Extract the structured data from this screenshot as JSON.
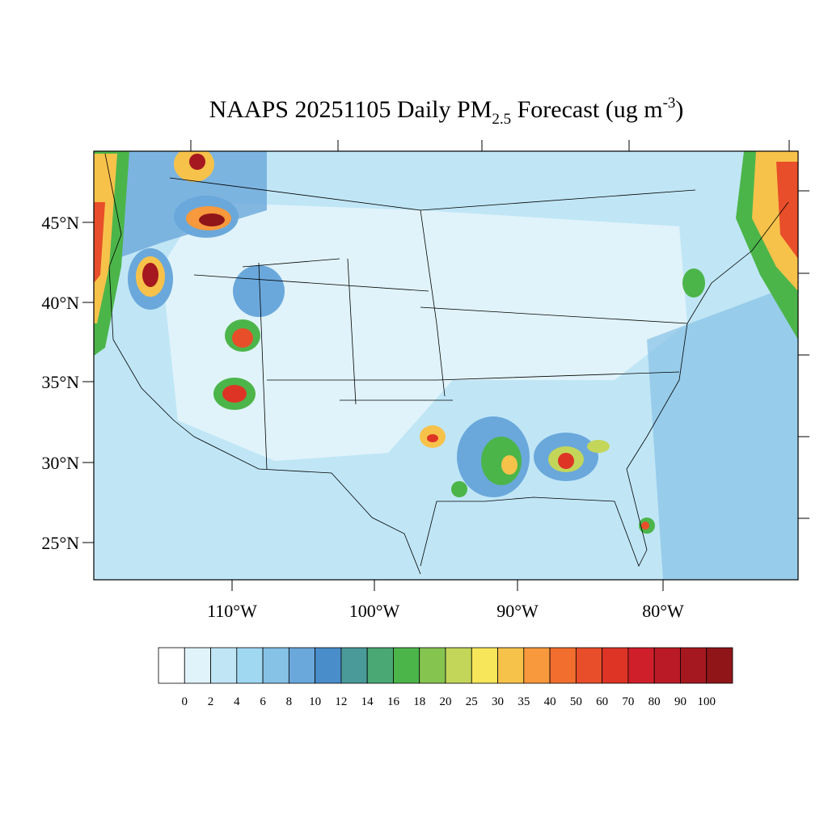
{
  "title": {
    "main": "NAAPS 20251105 Daily PM",
    "subscript": "2.5",
    "after": " Forecast (ug m",
    "superscript": "-3",
    "end": ")"
  },
  "lat_labels": [
    "45°N",
    "40°N",
    "35°N",
    "30°N",
    "25°N"
  ],
  "lon_labels": [
    "110°W",
    "100°W",
    "90°W",
    "80°W"
  ],
  "colorbar": {
    "levels": [
      0,
      2,
      4,
      6,
      8,
      10,
      12,
      14,
      16,
      18,
      20,
      25,
      30,
      35,
      40,
      50,
      60,
      70,
      80,
      90,
      100
    ],
    "colors": [
      "#ffffff",
      "#e0f3fa",
      "#c0e6f6",
      "#a0d8f2",
      "#86c1e6",
      "#6aa8db",
      "#4a8dcb",
      "#4a9a9a",
      "#4aa874",
      "#4cb54a",
      "#86c450",
      "#c3d65a",
      "#f7e65a",
      "#f7c24a",
      "#f7993c",
      "#f26e2e",
      "#e84e2a",
      "#dd3426",
      "#cf1f2a",
      "#ba1a26",
      "#a5181f",
      "#901519"
    ]
  }
}
